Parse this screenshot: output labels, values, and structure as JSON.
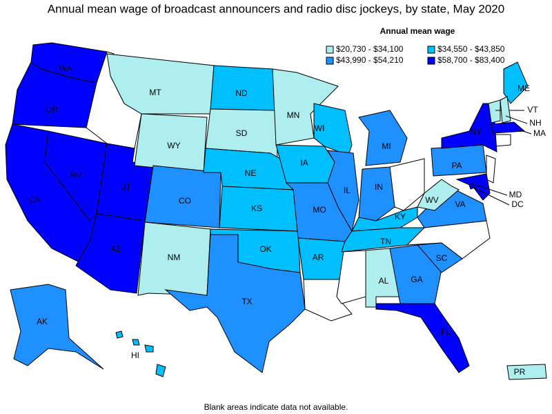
{
  "title": "Annual mean wage of broadcast announcers and radio disc jockeys, by state, May 2020",
  "legend": {
    "title": "Annual mean wage",
    "items": [
      {
        "label": "$20,730 - $34,100",
        "color": "#aeeeee"
      },
      {
        "label": "$34,550 - $43,850",
        "color": "#00bfff"
      },
      {
        "label": "$43,990 - $54,210",
        "color": "#1e90ff"
      },
      {
        "label": "$58,700 - $83,400",
        "color": "#0000ff"
      }
    ]
  },
  "states": [
    {
      "label": "WA",
      "class": 3
    },
    {
      "label": "OR",
      "class": 3
    },
    {
      "label": "CA",
      "class": 3
    },
    {
      "label": "NV",
      "class": 3
    },
    {
      "label": "UT",
      "class": 3
    },
    {
      "label": "AZ",
      "class": 3
    },
    {
      "label": "MT",
      "class": 0
    },
    {
      "label": "WY",
      "class": 0
    },
    {
      "label": "CO",
      "class": 2
    },
    {
      "label": "NM",
      "class": 0
    },
    {
      "label": "ND",
      "class": 1
    },
    {
      "label": "SD",
      "class": 0
    },
    {
      "label": "NE",
      "class": 1
    },
    {
      "label": "KS",
      "class": 1
    },
    {
      "label": "OK",
      "class": 1
    },
    {
      "label": "TX",
      "class": 2
    },
    {
      "label": "MN",
      "class": 0
    },
    {
      "label": "IA",
      "class": 1
    },
    {
      "label": "MO",
      "class": 2
    },
    {
      "label": "AR",
      "class": 1
    },
    {
      "label": "WI",
      "class": 1
    },
    {
      "label": "IL",
      "class": 2
    },
    {
      "label": "MI",
      "class": 2
    },
    {
      "label": "IN",
      "class": 2
    },
    {
      "label": "KY",
      "class": 1
    },
    {
      "label": "TN",
      "class": 1
    },
    {
      "label": "AL",
      "class": 0
    },
    {
      "label": "GA",
      "class": 2
    },
    {
      "label": "FL",
      "class": 3
    },
    {
      "label": "SC",
      "class": 2
    },
    {
      "label": "VA",
      "class": 2
    },
    {
      "label": "WV",
      "class": 0
    },
    {
      "label": "PA",
      "class": 2
    },
    {
      "label": "NY",
      "class": 3
    },
    {
      "label": "MD",
      "class": 3
    },
    {
      "label": "DC",
      "class": 3
    },
    {
      "label": "ME",
      "class": 1
    },
    {
      "label": "VT",
      "class": 0
    },
    {
      "label": "NH",
      "class": 0
    },
    {
      "label": "MA",
      "class": 3
    },
    {
      "label": "AK",
      "class": 2
    },
    {
      "label": "HI",
      "class": 1
    },
    {
      "label": "PR",
      "class": 0
    }
  ],
  "note": "Blank areas indicate data not available."
}
